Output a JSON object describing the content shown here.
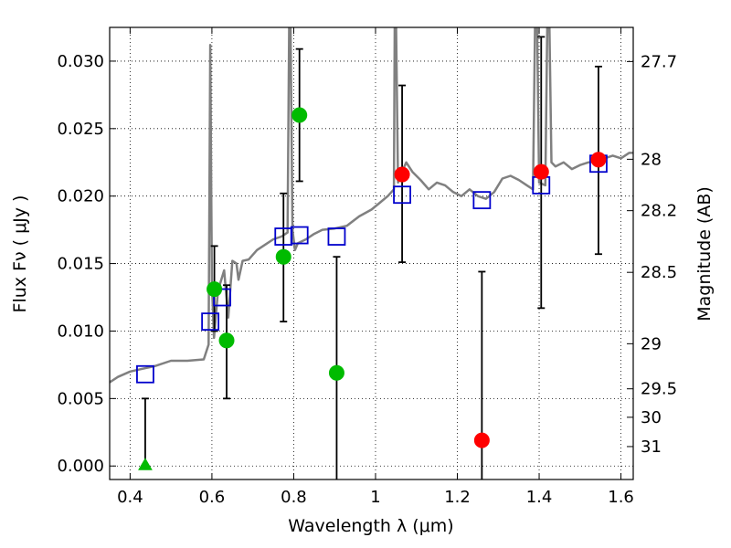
{
  "chart_data": {
    "type": "scatter",
    "xlabel": "Wavelength  λ (μm)",
    "ylabel": "Flux  Fν  ( μJy )",
    "ylabel_right": "Magnitude (AB)",
    "xlim": [
      0.35,
      1.63
    ],
    "ylim": [
      -0.001,
      0.0325
    ],
    "grid": true,
    "x_ticks": [
      0.4,
      0.6,
      0.8,
      1.0,
      1.2,
      1.4,
      1.6
    ],
    "x_tick_labels": [
      "0.4",
      "0.6",
      "0.8",
      "1",
      "1.2",
      "1.4",
      "1.6"
    ],
    "y_ticks": [
      0.0,
      0.005,
      0.01,
      0.015,
      0.02,
      0.025,
      0.03
    ],
    "y_tick_labels": [
      "0.000",
      "0.005",
      "0.010",
      "0.015",
      "0.020",
      "0.025",
      "0.030"
    ],
    "right_ticks": [
      {
        "label": "27.7",
        "flux": 0.02997
      },
      {
        "label": "28",
        "flux": 0.02273
      },
      {
        "label": "28.2",
        "flux": 0.01892
      },
      {
        "label": "28.5",
        "flux": 0.01435
      },
      {
        "label": "29",
        "flux": 0.00906
      },
      {
        "label": "29.5",
        "flux": 0.00572
      },
      {
        "label": "30",
        "flux": 0.00361
      },
      {
        "label": "31",
        "flux": 0.00144
      }
    ],
    "colors": {
      "spectrum": "#808080",
      "model": "#0000cc",
      "green": "#00bb00",
      "red": "#ff0000",
      "errorbar": "#000000"
    },
    "spectrum": {
      "x": [
        0.35,
        0.37,
        0.4,
        0.43,
        0.46,
        0.5,
        0.54,
        0.58,
        0.592,
        0.596,
        0.6,
        0.605,
        0.615,
        0.63,
        0.64,
        0.65,
        0.66,
        0.665,
        0.675,
        0.69,
        0.71,
        0.73,
        0.75,
        0.77,
        0.785,
        0.789,
        0.792,
        0.797,
        0.803,
        0.81,
        0.83,
        0.85,
        0.87,
        0.9,
        0.93,
        0.96,
        0.99,
        1.01,
        1.03,
        1.045,
        1.047,
        1.05,
        1.055,
        1.06,
        1.075,
        1.09,
        1.11,
        1.13,
        1.15,
        1.17,
        1.19,
        1.21,
        1.23,
        1.25,
        1.27,
        1.29,
        1.31,
        1.33,
        1.35,
        1.37,
        1.385,
        1.39,
        1.395,
        1.4,
        1.415,
        1.42,
        1.425,
        1.43,
        1.44,
        1.46,
        1.48,
        1.5,
        1.52,
        1.54,
        1.56,
        1.58,
        1.6,
        1.62,
        1.63
      ],
      "y": [
        0.0062,
        0.0066,
        0.007,
        0.0072,
        0.0074,
        0.0078,
        0.0078,
        0.0079,
        0.009,
        0.0312,
        0.0135,
        0.0095,
        0.013,
        0.0145,
        0.011,
        0.0152,
        0.015,
        0.0138,
        0.0152,
        0.0153,
        0.016,
        0.0164,
        0.0168,
        0.017,
        0.0173,
        0.033,
        0.033,
        0.0175,
        0.016,
        0.0165,
        0.0168,
        0.0172,
        0.0175,
        0.0176,
        0.0178,
        0.0185,
        0.019,
        0.0195,
        0.02,
        0.0205,
        0.033,
        0.033,
        0.021,
        0.0215,
        0.0225,
        0.0218,
        0.0212,
        0.0205,
        0.021,
        0.0208,
        0.0203,
        0.02,
        0.0205,
        0.02,
        0.0198,
        0.0203,
        0.0213,
        0.0215,
        0.0212,
        0.0208,
        0.0205,
        0.033,
        0.033,
        0.021,
        0.0208,
        0.033,
        0.033,
        0.0225,
        0.0222,
        0.0225,
        0.022,
        0.0223,
        0.0225,
        0.0226,
        0.0228,
        0.023,
        0.0228,
        0.0232,
        0.0232
      ]
    },
    "model_points": [
      {
        "x": 0.437,
        "y": 0.0068
      },
      {
        "x": 0.596,
        "y": 0.0107
      },
      {
        "x": 0.625,
        "y": 0.0125
      },
      {
        "x": 0.775,
        "y": 0.017
      },
      {
        "x": 0.814,
        "y": 0.0171
      },
      {
        "x": 0.905,
        "y": 0.017
      },
      {
        "x": 1.065,
        "y": 0.0201
      },
      {
        "x": 1.26,
        "y": 0.0197
      },
      {
        "x": 1.405,
        "y": 0.0208
      },
      {
        "x": 1.545,
        "y": 0.0224
      }
    ],
    "observations": [
      {
        "x": 0.437,
        "y": 0.0,
        "lo": 0.0,
        "hi": 0.005,
        "color": "green",
        "marker": "triangle"
      },
      {
        "x": 0.606,
        "y": 0.0131,
        "lo": 0.01,
        "hi": 0.0163,
        "color": "green",
        "marker": "circle"
      },
      {
        "x": 0.636,
        "y": 0.0093,
        "lo": 0.005,
        "hi": 0.0134,
        "color": "green",
        "marker": "circle"
      },
      {
        "x": 0.775,
        "y": 0.0155,
        "lo": 0.0107,
        "hi": 0.0202,
        "color": "green",
        "marker": "circle"
      },
      {
        "x": 0.814,
        "y": 0.026,
        "lo": 0.0211,
        "hi": 0.0309,
        "color": "green",
        "marker": "circle"
      },
      {
        "x": 0.905,
        "y": 0.0069,
        "lo": -0.001,
        "hi": 0.0155,
        "color": "green",
        "marker": "circle"
      },
      {
        "x": 1.065,
        "y": 0.0216,
        "lo": 0.0151,
        "hi": 0.0282,
        "color": "red",
        "marker": "circle"
      },
      {
        "x": 1.26,
        "y": 0.0019,
        "lo": -0.001,
        "hi": 0.0144,
        "color": "red",
        "marker": "circle"
      },
      {
        "x": 1.405,
        "y": 0.0218,
        "lo": 0.0117,
        "hi": 0.0318,
        "color": "red",
        "marker": "circle"
      },
      {
        "x": 1.545,
        "y": 0.0227,
        "lo": 0.0157,
        "hi": 0.0296,
        "color": "red",
        "marker": "circle"
      }
    ]
  }
}
